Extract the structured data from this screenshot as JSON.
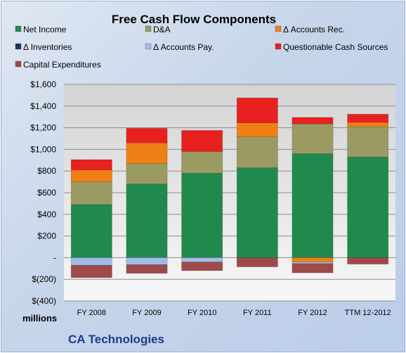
{
  "chart_data": {
    "type": "bar",
    "stacked": true,
    "title": "Free Cash Flow Components",
    "categories": [
      "FY 2008",
      "FY 2009",
      "FY 2010",
      "FY 2011",
      "FY 2012",
      "TTM 12-2012"
    ],
    "series": [
      {
        "name": "Net Income",
        "color": "#1f8a4c",
        "values": [
          490,
          680,
          780,
          830,
          960,
          930
        ]
      },
      {
        "name": "D&A",
        "color": "#9b9a63",
        "values": [
          210,
          190,
          200,
          285,
          275,
          280
        ]
      },
      {
        "name": "Δ Accounts Rec.",
        "color": "#f07f16",
        "values": [
          110,
          190,
          0,
          130,
          -40,
          40
        ]
      },
      {
        "name": "Δ Inventories",
        "color": "#1f3a5a",
        "values": [
          0,
          0,
          0,
          0,
          0,
          0
        ]
      },
      {
        "name": "Δ Accounts Pay.",
        "color": "#9fbde6",
        "values": [
          -70,
          -65,
          -40,
          0,
          -15,
          0
        ]
      },
      {
        "name": "Questionable Cash Sources",
        "color": "#e8201f",
        "values": [
          95,
          135,
          195,
          230,
          60,
          75
        ]
      },
      {
        "name": "Capital Expenditures",
        "color": "#9e4a4a",
        "values": [
          -115,
          -80,
          -80,
          -85,
          -85,
          -60
        ]
      }
    ],
    "ylim": [
      -400,
      1600
    ],
    "yticks": [
      {
        "value": 1600,
        "label": "$1,600"
      },
      {
        "value": 1400,
        "label": "$1,400"
      },
      {
        "value": 1200,
        "label": "$1,200"
      },
      {
        "value": 1000,
        "label": "$1,000"
      },
      {
        "value": 800,
        "label": "$800"
      },
      {
        "value": 600,
        "label": "$600"
      },
      {
        "value": 400,
        "label": "$400"
      },
      {
        "value": 200,
        "label": "$200"
      },
      {
        "value": 0,
        "label": "-"
      },
      {
        "value": -200,
        "label": "$(200)"
      },
      {
        "value": -400,
        "label": "$(400)"
      }
    ],
    "grid": true,
    "legend": "top",
    "units_label": "millions",
    "company": "CA Technologies"
  }
}
